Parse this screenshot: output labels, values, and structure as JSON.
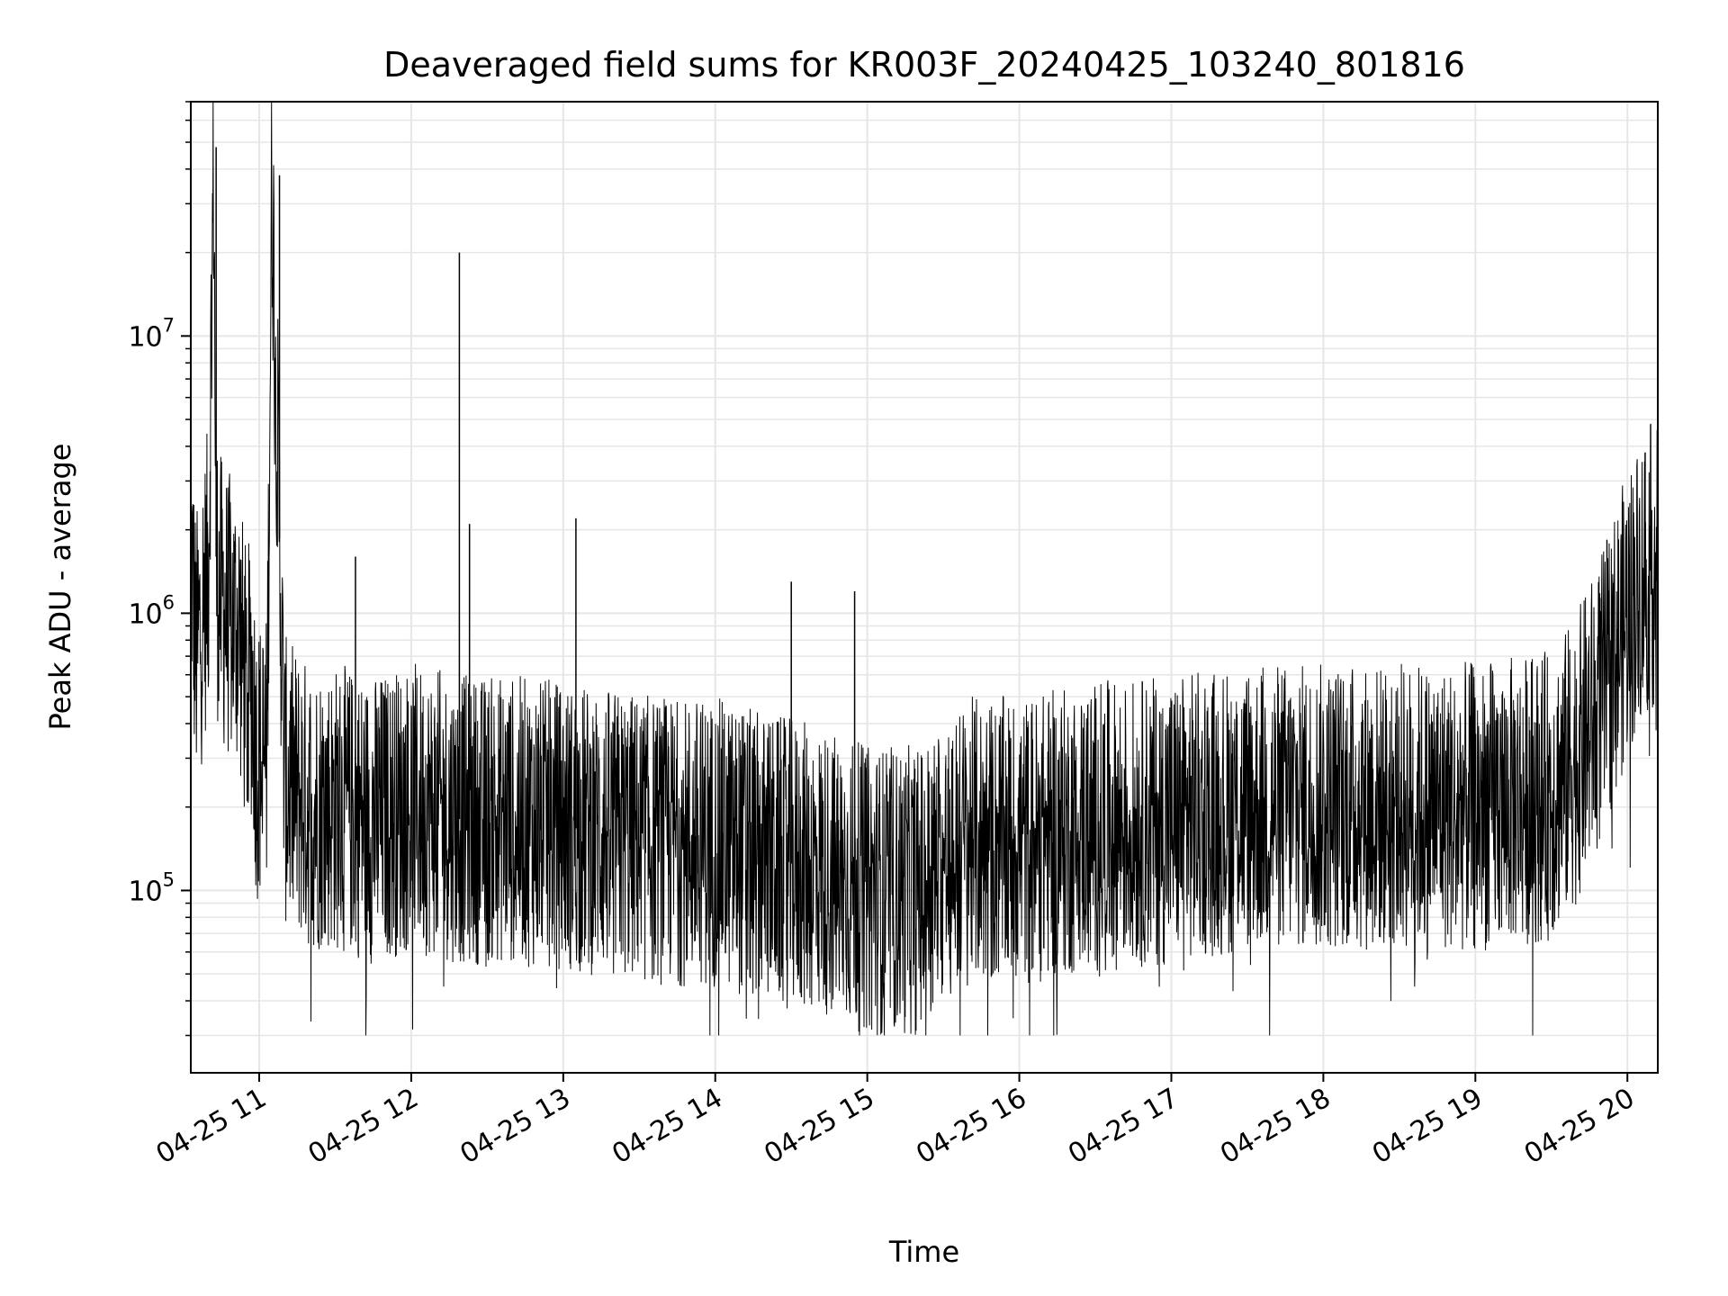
{
  "chart_data": {
    "type": "line",
    "title": "Deaveraged field sums for KR003F_20240425_103240_801816",
    "xlabel": "Time",
    "ylabel": "Peak ADU - average",
    "y_scale": "log",
    "ylim": [
      22000,
      70000000
    ],
    "xlim": [
      "04-25 10:33",
      "04-25 20:12"
    ],
    "grid": true,
    "line_color": "#000000",
    "grid_color": "#e6e6e6",
    "x_ticks": [
      "04-25 11",
      "04-25 12",
      "04-25 13",
      "04-25 14",
      "04-25 15",
      "04-25 16",
      "04-25 17",
      "04-25 18",
      "04-25 19",
      "04-25 20"
    ],
    "y_ticks": [
      {
        "base": "10",
        "exp": "5",
        "value": 100000
      },
      {
        "base": "10",
        "exp": "6",
        "value": 1000000
      },
      {
        "base": "10",
        "exp": "7",
        "value": 10000000
      }
    ],
    "series": [
      {
        "x": [
          "04-25 10:33",
          "04-25 10:35",
          "04-25 10:37",
          "04-25 10:40",
          "04-25 10:42",
          "04-25 10:43",
          "04-25 10:44",
          "04-25 10:47",
          "04-25 10:52",
          "04-25 10:55",
          "04-25 10:57",
          "04-25 10:59",
          "04-25 11:03",
          "04-25 11:05",
          "04-25 11:10",
          "04-25 11:20",
          "04-25 11:30",
          "04-25 11:45",
          "04-25 12:00",
          "04-25 12:20",
          "04-25 12:40",
          "04-25 13:00",
          "04-25 13:20",
          "04-25 13:40",
          "04-25 14:00",
          "04-25 14:20",
          "04-25 14:40",
          "04-25 15:00",
          "04-25 15:20",
          "04-25 15:40",
          "04-25 16:00",
          "04-25 16:30",
          "04-25 17:00",
          "04-25 17:30",
          "04-25 18:00",
          "04-25 18:30",
          "04-25 19:00",
          "04-25 19:30",
          "04-25 19:40",
          "04-25 19:50",
          "04-25 20:00",
          "04-25 20:05",
          "04-25 20:10",
          "04-25 20:12"
        ],
        "y": [
          1800000,
          700000,
          900000,
          1500000,
          45000000,
          1600000,
          1200000,
          1000000,
          900000,
          500000,
          600000,
          300000,
          300000,
          38000000,
          250000,
          200000,
          200000,
          180000,
          200000,
          180000,
          180000,
          170000,
          160000,
          150000,
          150000,
          130000,
          120000,
          100000,
          100000,
          150000,
          150000,
          170000,
          180000,
          200000,
          200000,
          200000,
          200000,
          220000,
          300000,
          500000,
          1000000,
          1300000,
          1500000,
          1400000
        ]
      }
    ],
    "spikes": [
      {
        "x": "04-25 10:43",
        "y": 48000000
      },
      {
        "x": "04-25 11:08",
        "y": 38000000
      },
      {
        "x": "04-25 12:19",
        "y": 20000000
      },
      {
        "x": "04-25 12:23",
        "y": 2100000
      },
      {
        "x": "04-25 13:05",
        "y": 2200000
      },
      {
        "x": "04-25 11:38",
        "y": 1600000
      },
      {
        "x": "04-25 14:30",
        "y": 1300000
      },
      {
        "x": "04-25 14:55",
        "y": 1200000
      },
      {
        "x": "04-25 20:07",
        "y": 3800000
      }
    ]
  }
}
